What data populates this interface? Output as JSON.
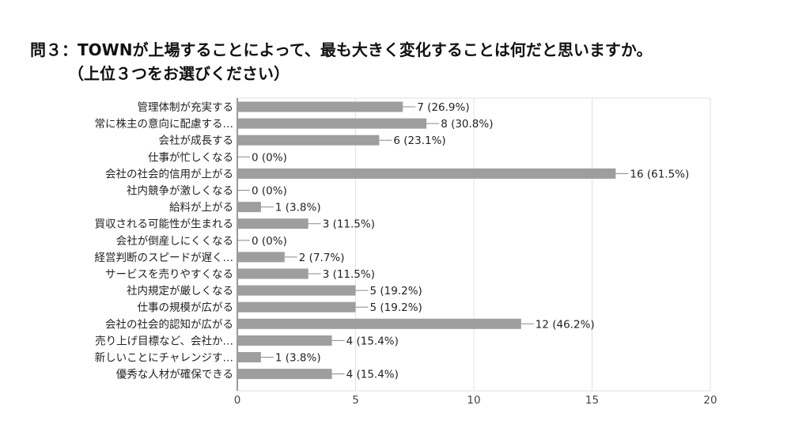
{
  "chart_data": {
    "type": "bar",
    "orientation": "horizontal",
    "title": "問３：TOWNが上場することによって、最も大きく変化することは何だと思いますか。",
    "subtitle": "（上位３つをお選びください）",
    "categories": [
      "管理体制が充実する",
      "常に株主の意向に配慮する…",
      "会社が成長する",
      "仕事が忙しくなる",
      "会社の社会的信用が上がる",
      "社内競争が激しくなる",
      "給料が上がる",
      "買収される可能性が生まれる",
      "会社が倒産しにくくなる",
      "経営判断のスピードが遅く…",
      "サービスを売りやすくなる",
      "社内規定が厳しくなる",
      "仕事の規模が広がる",
      "会社の社会的認知が広がる",
      "売り上げ目標など、会社か…",
      "新しいことにチャレンジす…",
      "優秀な人材が確保できる"
    ],
    "values": [
      7,
      8,
      6,
      0,
      16,
      0,
      1,
      3,
      0,
      2,
      3,
      5,
      5,
      12,
      4,
      1,
      4
    ],
    "value_labels": [
      "7 (26.9%)",
      "8 (30.8%)",
      "6 (23.1%)",
      "0 (0%)",
      "16 (61.5%)",
      "0 (0%)",
      "1 (3.8%)",
      "3 (11.5%)",
      "0 (0%)",
      "2 (7.7%)",
      "3 (11.5%)",
      "5 (19.2%)",
      "5 (19.2%)",
      "12 (46.2%)",
      "4 (15.4%)",
      "1 (3.8%)",
      "4 (15.4%)"
    ],
    "xticks": [
      "0",
      "5",
      "10",
      "15",
      "20"
    ],
    "xlim": [
      0,
      20
    ],
    "grid": true,
    "legend": "none",
    "bar_color": "#9e9e9e",
    "grid_color": "#e2e2e2"
  }
}
